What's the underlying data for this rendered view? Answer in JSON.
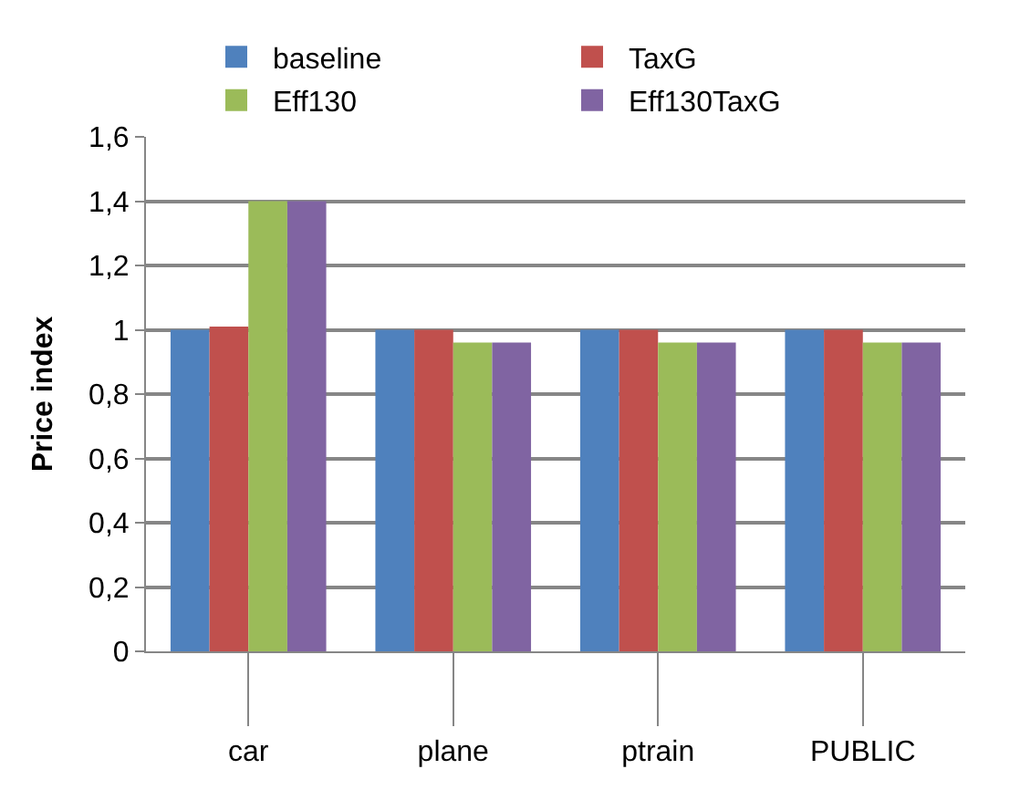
{
  "chart_data": {
    "type": "bar",
    "ylabel": "Price index",
    "categories": [
      "car",
      "plane",
      "ptrain",
      "PUBLIC"
    ],
    "series": [
      {
        "name": "baseline",
        "color": "#4f81bd",
        "values": [
          1,
          1,
          1,
          1
        ]
      },
      {
        "name": "TaxG",
        "color": "#c0504d",
        "values": [
          1.01,
          1,
          1,
          1
        ]
      },
      {
        "name": "Eff130",
        "color": "#9bbb59",
        "values": [
          1.4,
          0.96,
          0.96,
          0.96
        ]
      },
      {
        "name": "Eff130TaxG",
        "color": "#8064a2",
        "values": [
          1.4,
          0.96,
          0.96,
          0.96
        ]
      }
    ],
    "ylim": [
      0,
      1.6
    ],
    "yticks": [
      0,
      {
        "value": 0.2,
        "label": "0,2"
      },
      {
        "value": 0.4,
        "label": "0,4"
      },
      {
        "value": 0.6,
        "label": "0,6"
      },
      {
        "value": 0.8,
        "label": "0,8"
      },
      1,
      {
        "value": 1.2,
        "label": "1,2"
      },
      {
        "value": 1.4,
        "label": "1,4"
      },
      {
        "value": 1.6,
        "label": "1,6"
      }
    ],
    "grid": "y",
    "legend": "top"
  }
}
